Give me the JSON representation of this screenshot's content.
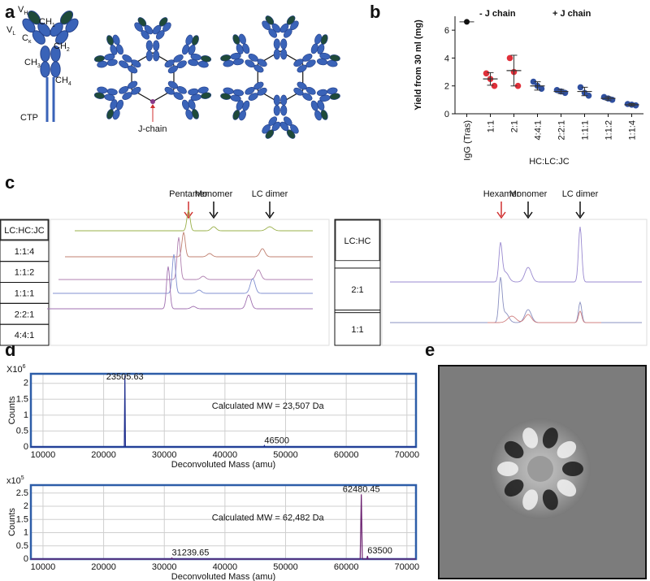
{
  "panel_labels": [
    "a",
    "b",
    "c",
    "d",
    "e"
  ],
  "panel_a": {
    "labels": [
      {
        "main": "V",
        "sub": "H"
      },
      {
        "main": "V",
        "sub": "L"
      },
      {
        "main": "CH",
        "sub": "1"
      },
      {
        "main": "C",
        "sub": "κ"
      },
      {
        "main": "CH",
        "sub": "2"
      },
      {
        "main": "CH",
        "sub": "3"
      },
      {
        "main": "CH",
        "sub": "4"
      },
      {
        "main": "CTP"
      }
    ],
    "jchain": "J-chain"
  },
  "panel_c": {
    "left": {
      "header": "LC:HC:JC",
      "rows": [
        "1:1:4",
        "1:1:2",
        "1:1:1",
        "2:2:1",
        "4:4:1"
      ],
      "row_colors": [
        "#3aa53a",
        "#a0522d",
        "#7b4fa0",
        "#3b4fb0",
        "#111111"
      ]
    },
    "left_peaks": [
      "Pentamer",
      "Monomer",
      "LC dimer"
    ],
    "right": {
      "header": "LC:HC",
      "rows": [
        "2:1",
        "1:1"
      ]
    },
    "right_peaks": [
      "Hexamer",
      "Monomer",
      "LC dimer"
    ]
  },
  "chart_data": [
    {
      "type": "dot",
      "ylabel": "Yield from 30 ml (mg)",
      "xlabel": "HC:LC:JC",
      "categories": [
        "IgG (Tras)",
        "1:1",
        "2:1",
        "4:4:1",
        "2:2:1",
        "1:1:1",
        "1:1:2",
        "1:1:4"
      ],
      "ylim": [
        0,
        7
      ],
      "yticks": [
        0,
        2,
        4,
        6
      ],
      "series": [
        {
          "color": "#111111",
          "values": [
            6.6,
            null,
            null,
            null,
            null,
            null,
            null,
            null
          ]
        },
        {
          "name": "- J chain",
          "color": "#e0303a",
          "values": [
            null,
            2.5,
            3.1,
            null,
            null,
            null,
            null,
            null
          ],
          "errors": [
            null,
            0.45,
            1.1,
            null,
            null,
            null,
            null,
            null
          ],
          "replicates": [
            null,
            [
              2.9,
              2.5,
              2.0
            ],
            [
              4.0,
              3.0,
              2.0
            ],
            null,
            null,
            null,
            null,
            null
          ]
        },
        {
          "name": "+ J chain",
          "color": "#3050a0",
          "values": [
            null,
            null,
            null,
            2.0,
            1.6,
            1.6,
            1.1,
            0.65
          ],
          "errors": [
            null,
            null,
            null,
            0.3,
            0.15,
            0.3,
            0.12,
            0.08
          ],
          "replicates": [
            null,
            null,
            null,
            [
              2.3,
              2.0,
              1.8
            ],
            [
              1.7,
              1.6,
              1.5
            ],
            [
              1.9,
              1.5,
              1.3
            ],
            [
              1.2,
              1.1,
              1.0
            ],
            [
              0.7,
              0.65,
              0.6
            ]
          ]
        }
      ]
    },
    {
      "type": "line",
      "scale_label": {
        "main": "X10",
        "sup": "6"
      },
      "ylabel": "Counts",
      "xlabel": "Deconvoluted Mass (amu)",
      "annotation": "Calculated MW = 23,507 Da",
      "xlim": [
        8000,
        71500
      ],
      "xticks": [
        10000,
        20000,
        30000,
        40000,
        50000,
        60000,
        70000
      ],
      "ylim": [
        0,
        2.3
      ],
      "yticks": [
        0,
        0.5,
        1,
        1.5,
        2
      ],
      "x": [
        8000,
        23400,
        23505.63,
        23600,
        46400,
        46500,
        46600,
        71500
      ],
      "series": [
        {
          "color": "#1f2f8f",
          "values": [
            0,
            0,
            2.25,
            0,
            0,
            0.04,
            0,
            0
          ]
        }
      ],
      "label_color": "#3d4a9a"
    },
    {
      "type": "line",
      "scale_label": {
        "main": "x10",
        "sup": "5"
      },
      "ylabel": "Counts",
      "xlabel": "Deconvoluted Mass (amu)",
      "annotation": "Calculated MW = 62,482 Da",
      "xlim": [
        8000,
        71500
      ],
      "xticks": [
        10000,
        20000,
        30000,
        40000,
        50000,
        60000,
        70000
      ],
      "ylim": [
        0,
        2.8
      ],
      "yticks": [
        0,
        0.5,
        1,
        1.5,
        2,
        2.5
      ],
      "x": [
        8000,
        31100,
        31239.65,
        31400,
        62300,
        62480.45,
        62650,
        63400,
        63500,
        63600,
        71500
      ],
      "series": [
        {
          "color": "#6a1f6f",
          "values": [
            0,
            0,
            0.04,
            0,
            0,
            2.45,
            0,
            0,
            0.12,
            0,
            0
          ]
        }
      ],
      "label_color": "#7a2a80"
    }
  ]
}
